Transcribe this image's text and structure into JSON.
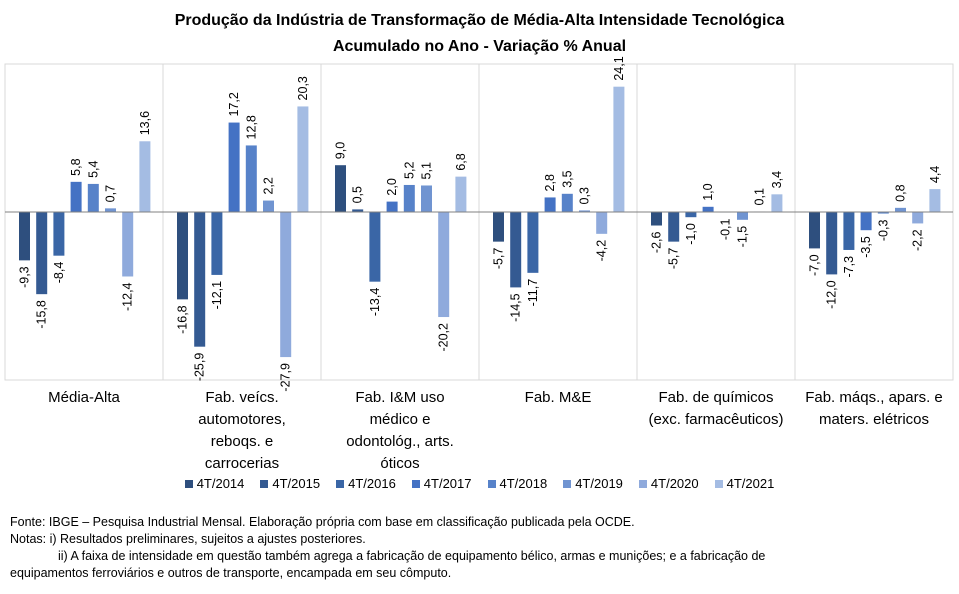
{
  "chart_data": {
    "type": "bar",
    "title": "Produção da Indústria de Transformação de Média-Alta Intensidade Tecnológica",
    "subtitle": "Acumulado no Ano - Variação % Anual",
    "categories": [
      [
        "Média-Alta"
      ],
      [
        "Fab. veícs.",
        "automotores,",
        "reboqs. e",
        "carrocerias"
      ],
      [
        "Fab. I&M uso",
        "médico e",
        "odontológ., arts.",
        "óticos"
      ],
      [
        "Fab. M&E"
      ],
      [
        "Fab. de químicos",
        "(exc. farmacêuticos)"
      ],
      [
        "Fab. máqs., apars. e",
        "maters. elétricos"
      ]
    ],
    "series": [
      {
        "name": "4T/2014",
        "color": "#2E4F7E",
        "values": [
          -9.3,
          -16.8,
          9.0,
          -5.7,
          -2.6,
          -7.0
        ]
      },
      {
        "name": "4T/2015",
        "color": "#345A92",
        "values": [
          -15.8,
          -25.9,
          0.5,
          -14.5,
          -5.7,
          -12.0
        ]
      },
      {
        "name": "4T/2016",
        "color": "#3A66A6",
        "values": [
          -8.4,
          -12.1,
          -13.4,
          -11.7,
          -1.0,
          -7.3
        ]
      },
      {
        "name": "4T/2017",
        "color": "#4472C4",
        "values": [
          5.8,
          17.2,
          2.0,
          2.8,
          1.0,
          -3.5
        ]
      },
      {
        "name": "4T/2018",
        "color": "#5782C9",
        "values": [
          5.4,
          12.8,
          5.2,
          3.5,
          -0.1,
          -0.3
        ]
      },
      {
        "name": "4T/2019",
        "color": "#7094D1",
        "values": [
          0.7,
          2.2,
          5.1,
          0.3,
          -1.5,
          0.8
        ]
      },
      {
        "name": "4T/2020",
        "color": "#8FAADC",
        "values": [
          -12.4,
          -27.9,
          -20.2,
          -4.2,
          0.1,
          -2.2
        ]
      },
      {
        "name": "4T/2021",
        "color": "#A4BCE3",
        "values": [
          13.6,
          20.3,
          6.8,
          24.1,
          3.4,
          4.4
        ]
      }
    ],
    "value_labels": [
      [
        "-9,3",
        "-16,8",
        "9,0",
        "-5,7",
        "-2,6",
        "-7,0"
      ],
      [
        "-15,8",
        "-25,9",
        "0,5",
        "-14,5",
        "-5,7",
        "-12,0"
      ],
      [
        "-8,4",
        "-12,1",
        "-13,4",
        "-11,7",
        "-1,0",
        "-7,3"
      ],
      [
        "5,8",
        "17,2",
        "2,0",
        "2,8",
        "1,0",
        "-3,5"
      ],
      [
        "5,4",
        "12,8",
        "5,2",
        "3,5",
        "-0,1",
        "-0,3"
      ],
      [
        "0,7",
        "2,2",
        "5,1",
        "0,3",
        "-1,5",
        "0,8"
      ],
      [
        "-12,4",
        "-27,9",
        "-20,2",
        "-4,2",
        "0,1",
        "-2,2"
      ],
      [
        "13,6",
        "20,3",
        "6,8",
        "24,1",
        "3,4",
        "4,4"
      ]
    ],
    "ylim": [
      -30,
      27
    ],
    "grid": false,
    "legend_placement": "bottom"
  },
  "notes": {
    "source": "Fonte: IBGE – Pesquisa Industrial Mensal. Elaboração própria com base em classificação publicada pela OCDE.",
    "note1": "Notas: i) Resultados preliminares, sujeitos a ajustes posteriores.",
    "note2a": "ii) A faixa de intensidade em questão também agrega a fabricação de equipamento bélico, armas e munições; e a fabricação de",
    "note2b": "equipamentos ferroviários e outros de transporte, encampada em seu cômputo."
  }
}
